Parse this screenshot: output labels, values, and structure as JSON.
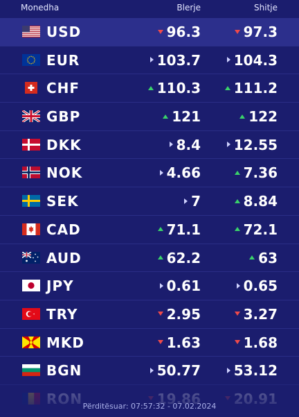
{
  "header": {
    "currency_label": "Monedha",
    "buy_label": "Blerje",
    "sell_label": "Shitje"
  },
  "rows": [
    {
      "code": "USD",
      "flag": "us-flag-icon",
      "buy": "96.3",
      "buy_trend": "down",
      "sell": "97.3",
      "sell_trend": "down"
    },
    {
      "code": "EUR",
      "flag": "eu-flag-icon",
      "buy": "103.7",
      "buy_trend": "same",
      "sell": "104.3",
      "sell_trend": "same"
    },
    {
      "code": "CHF",
      "flag": "ch-flag-icon",
      "buy": "110.3",
      "buy_trend": "up",
      "sell": "111.2",
      "sell_trend": "up"
    },
    {
      "code": "GBP",
      "flag": "gb-flag-icon",
      "buy": "121",
      "buy_trend": "up",
      "sell": "122",
      "sell_trend": "up"
    },
    {
      "code": "DKK",
      "flag": "dk-flag-icon",
      "buy": "8.4",
      "buy_trend": "same",
      "sell": "12.55",
      "sell_trend": "same"
    },
    {
      "code": "NOK",
      "flag": "no-flag-icon",
      "buy": "4.66",
      "buy_trend": "same",
      "sell": "7.36",
      "sell_trend": "up"
    },
    {
      "code": "SEK",
      "flag": "se-flag-icon",
      "buy": "7",
      "buy_trend": "same",
      "sell": "8.84",
      "sell_trend": "up"
    },
    {
      "code": "CAD",
      "flag": "ca-flag-icon",
      "buy": "71.1",
      "buy_trend": "up",
      "sell": "72.1",
      "sell_trend": "up"
    },
    {
      "code": "AUD",
      "flag": "au-flag-icon",
      "buy": "62.2",
      "buy_trend": "up",
      "sell": "63",
      "sell_trend": "up"
    },
    {
      "code": "JPY",
      "flag": "jp-flag-icon",
      "buy": "0.61",
      "buy_trend": "same",
      "sell": "0.65",
      "sell_trend": "same"
    },
    {
      "code": "TRY",
      "flag": "tr-flag-icon",
      "buy": "2.95",
      "buy_trend": "down",
      "sell": "3.27",
      "sell_trend": "down"
    },
    {
      "code": "MKD",
      "flag": "mk-flag-icon",
      "buy": "1.63",
      "buy_trend": "down",
      "sell": "1.68",
      "sell_trend": "down"
    },
    {
      "code": "BGN",
      "flag": "bg-flag-icon",
      "buy": "50.77",
      "buy_trend": "same",
      "sell": "53.12",
      "sell_trend": "same"
    },
    {
      "code": "RON",
      "flag": "ro-flag-icon",
      "buy": "19.86",
      "buy_trend": "down",
      "sell": "20.91",
      "sell_trend": "down"
    }
  ],
  "footer": {
    "updated_text": "Përditësuar: 07:57:32 - 07.02.2024"
  },
  "colors": {
    "background": "#1b1d6e",
    "up": "#3ad26a",
    "down": "#f04a4a",
    "same": "#cfd2ff"
  }
}
